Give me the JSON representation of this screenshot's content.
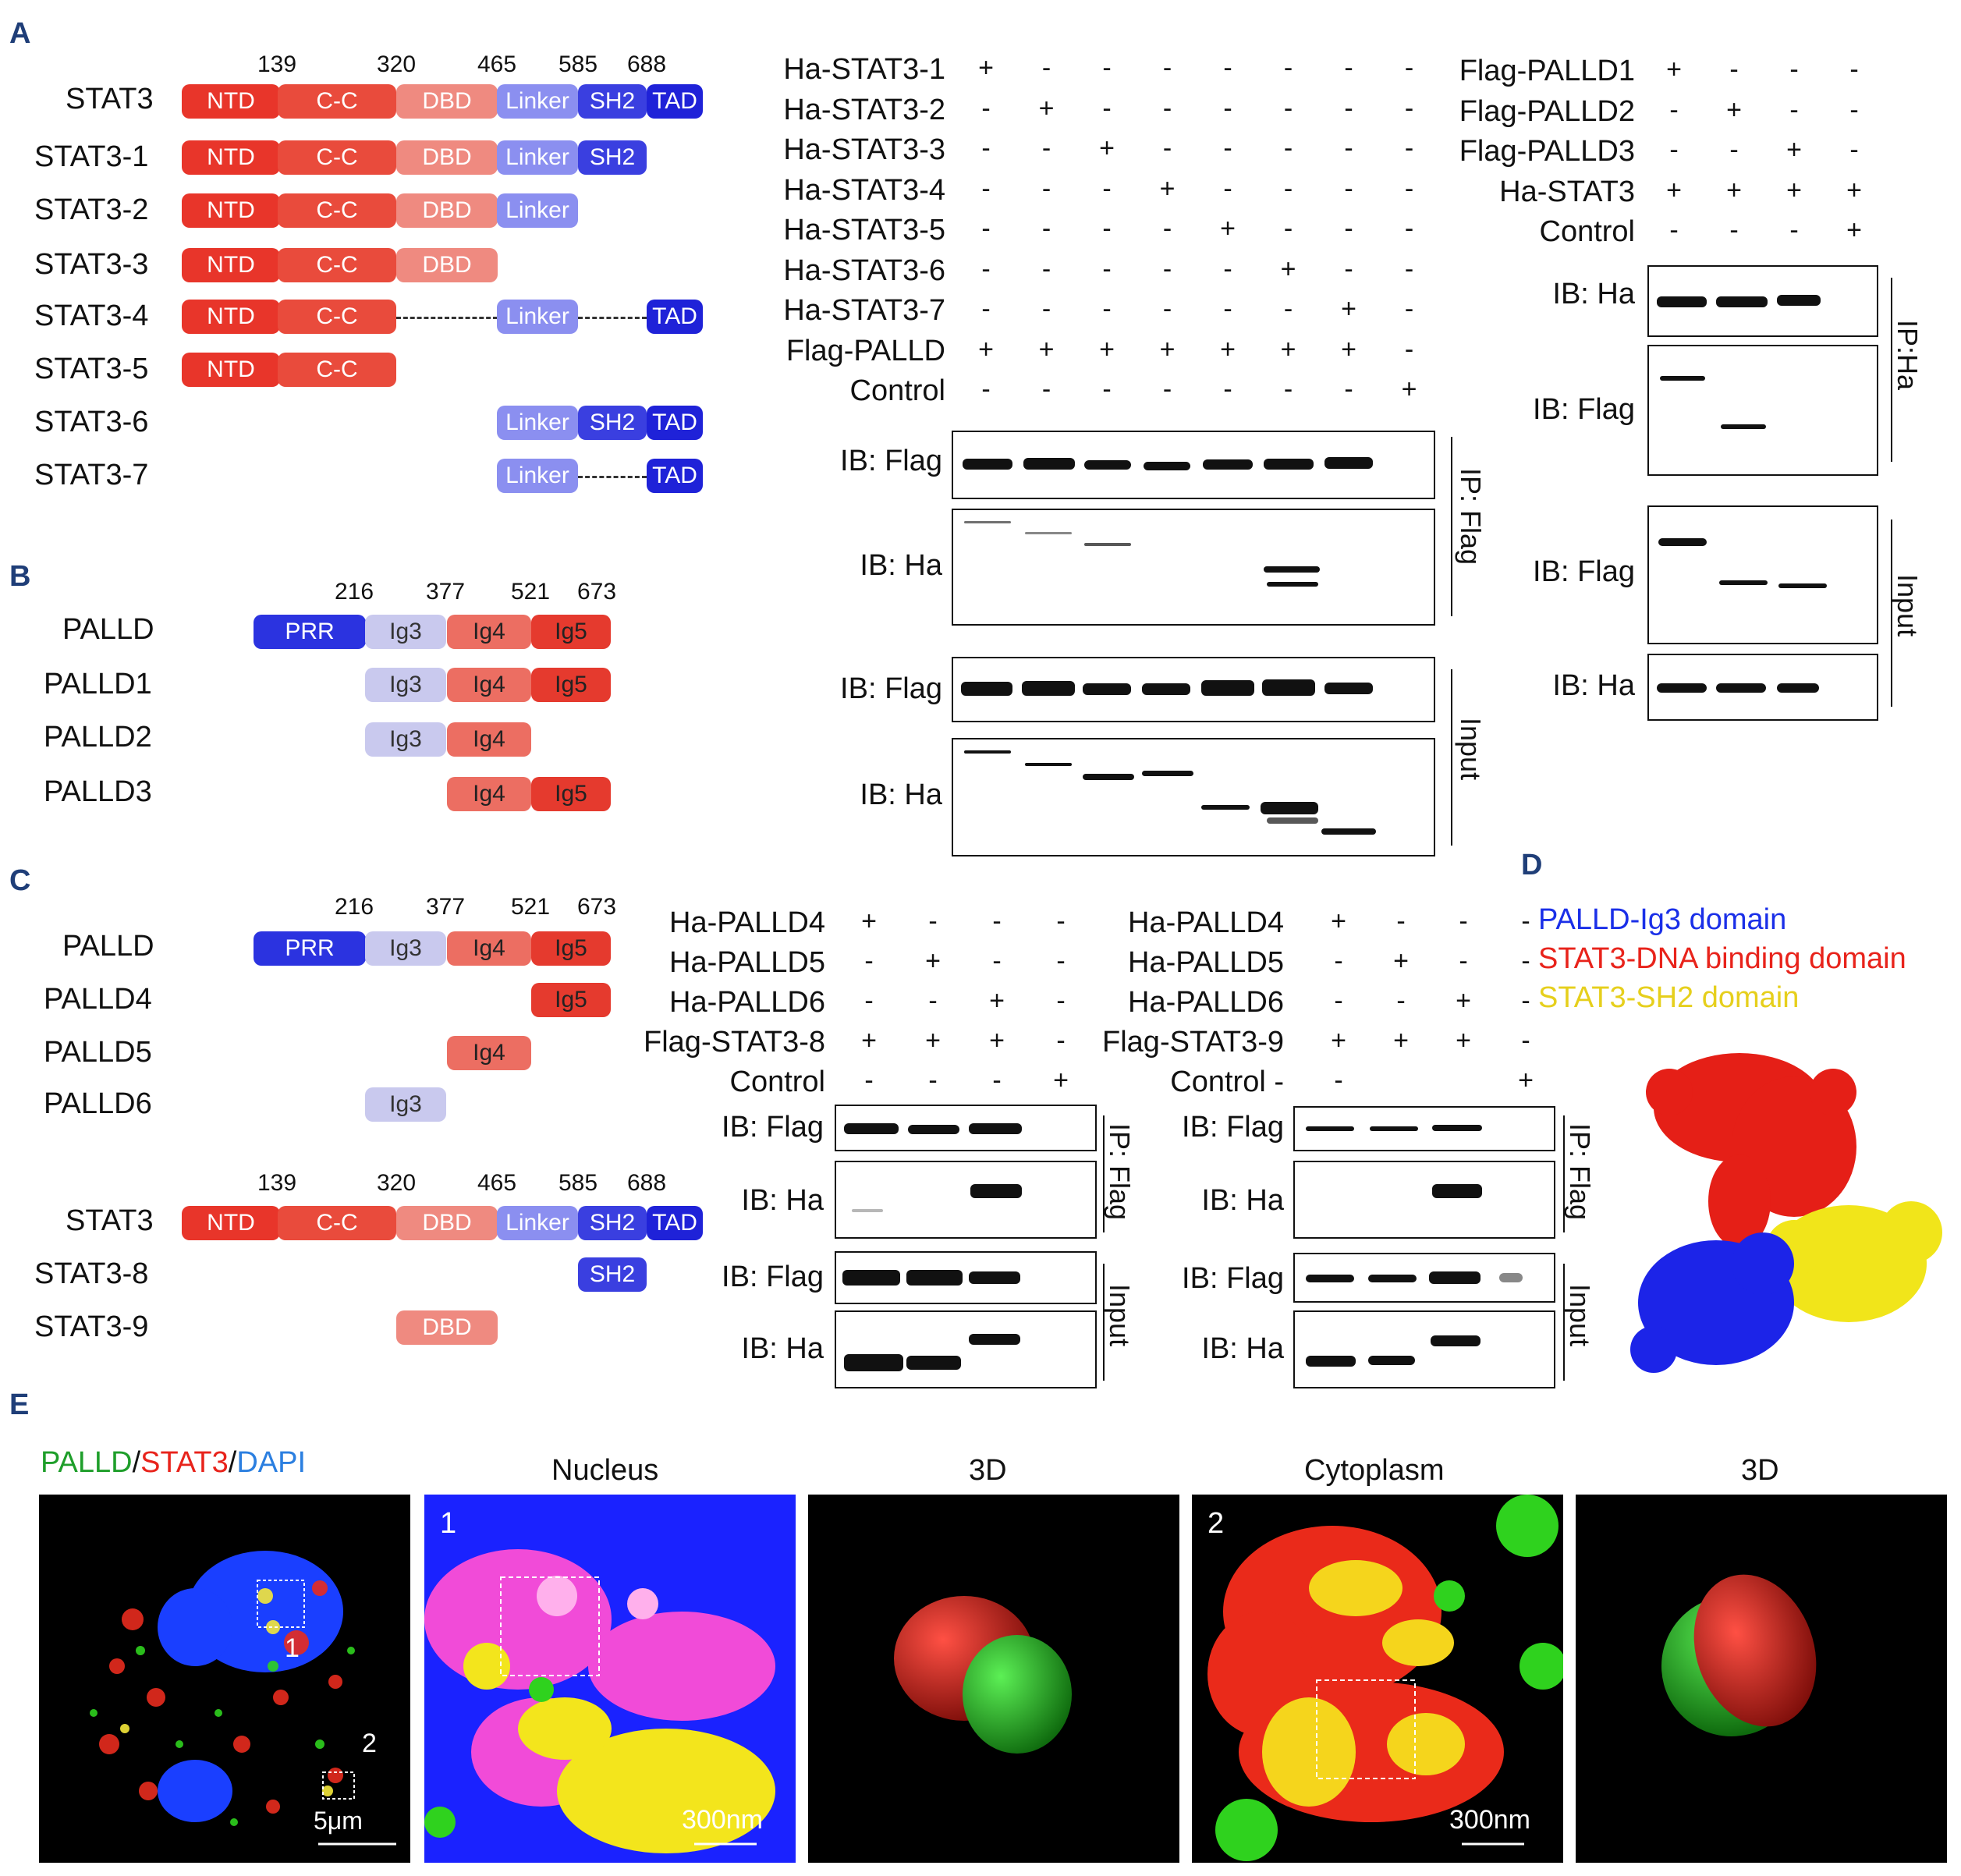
{
  "panels": {
    "A": "A",
    "B": "B",
    "C": "C",
    "D": "D",
    "E": "E"
  },
  "colors": {
    "ntd": "#e8352a",
    "cc": "#e94b3c",
    "dbd": "#ef8a80",
    "linker": "#8b8ff0",
    "sh2": "#3a3fe0",
    "tad": "#1f22d8",
    "prr": "#2b33e0",
    "ig3": "#c9c9ee",
    "ig4": "#ec6e62",
    "ig5": "#e53a2e",
    "label": "#1f3e78"
  },
  "stat3_positions": [
    "139",
    "320",
    "465",
    "585",
    "688"
  ],
  "palld_positions": [
    "216",
    "377",
    "521",
    "673"
  ],
  "stat3_constructs": [
    {
      "name": "STAT3"
    },
    {
      "name": "STAT3-1"
    },
    {
      "name": "STAT3-2"
    },
    {
      "name": "STAT3-3"
    },
    {
      "name": "STAT3-4"
    },
    {
      "name": "STAT3-5"
    },
    {
      "name": "STAT3-6"
    },
    {
      "name": "STAT3-7"
    }
  ],
  "domains": {
    "ntd": "NTD",
    "cc": "C-C",
    "dbd": "DBD",
    "linker": "Linker",
    "sh2": "SH2",
    "tad": "TAD",
    "prr": "PRR",
    "ig3": "Ig3",
    "ig4": "Ig4",
    "ig5": "Ig5"
  },
  "palld_b": [
    "PALLD",
    "PALLD1",
    "PALLD2",
    "PALLD3"
  ],
  "palld_c": [
    "PALLD",
    "PALLD4",
    "PALLD5",
    "PALLD6"
  ],
  "stat3_c": [
    "STAT3",
    "STAT3-8",
    "STAT3-9"
  ],
  "blotA_mid": {
    "rows": [
      {
        "label": "Ha-STAT3-1",
        "marks": [
          "+",
          "-",
          "-",
          "-",
          "-",
          "-",
          "-",
          "-"
        ]
      },
      {
        "label": "Ha-STAT3-2",
        "marks": [
          "-",
          "+",
          "-",
          "-",
          "-",
          "-",
          "-",
          "-"
        ]
      },
      {
        "label": "Ha-STAT3-3",
        "marks": [
          "-",
          "-",
          "+",
          "-",
          "-",
          "-",
          "-",
          "-"
        ]
      },
      {
        "label": "Ha-STAT3-4",
        "marks": [
          "-",
          "-",
          "-",
          "+",
          "-",
          "-",
          "-",
          "-"
        ]
      },
      {
        "label": "Ha-STAT3-5",
        "marks": [
          "-",
          "-",
          "-",
          "-",
          "+",
          "-",
          "-",
          "-"
        ]
      },
      {
        "label": "Ha-STAT3-6",
        "marks": [
          "-",
          "-",
          "-",
          "-",
          "-",
          "+",
          "-",
          "-"
        ]
      },
      {
        "label": "Ha-STAT3-7",
        "marks": [
          "-",
          "-",
          "-",
          "-",
          "-",
          "-",
          "+",
          "-"
        ]
      },
      {
        "label": "Flag-PALLD",
        "marks": [
          "+",
          "+",
          "+",
          "+",
          "+",
          "+",
          "+",
          "-"
        ]
      },
      {
        "label": "Control",
        "marks": [
          "-",
          "-",
          "-",
          "-",
          "-",
          "-",
          "-",
          "+"
        ]
      }
    ],
    "ib": [
      "IB: Flag",
      "IB: Ha",
      "IB: Flag",
      "IB: Ha"
    ],
    "groups": [
      "IP: Flag",
      "Input"
    ]
  },
  "blotA_right": {
    "rows": [
      {
        "label": "Flag-PALLD1",
        "marks": [
          "+",
          "-",
          "-",
          "-"
        ]
      },
      {
        "label": "Flag-PALLD2",
        "marks": [
          "-",
          "+",
          "-",
          "-"
        ]
      },
      {
        "label": "Flag-PALLD3",
        "marks": [
          "-",
          "-",
          "+",
          "-"
        ]
      },
      {
        "label": "Ha-STAT3",
        "marks": [
          "+",
          "+",
          "+",
          "+"
        ]
      },
      {
        "label": "Control",
        "marks": [
          "-",
          "-",
          "-",
          "+"
        ]
      }
    ],
    "ib": [
      "IB: Ha",
      "IB: Flag",
      "IB: Flag",
      "IB: Ha"
    ],
    "groups": [
      "IP:Ha",
      "Input"
    ]
  },
  "blotC1": {
    "rows": [
      {
        "label": "Ha-PALLD4",
        "marks": [
          "+",
          "-",
          "-",
          "-"
        ]
      },
      {
        "label": "Ha-PALLD5",
        "marks": [
          "-",
          "+",
          "-",
          "-"
        ]
      },
      {
        "label": "Ha-PALLD6",
        "marks": [
          "-",
          "-",
          "+",
          "-"
        ]
      },
      {
        "label": "Flag-STAT3-8",
        "marks": [
          "+",
          "+",
          "+",
          "-"
        ]
      },
      {
        "label": "Control",
        "marks": [
          "-",
          "-",
          "-",
          "+"
        ]
      }
    ],
    "ib": [
      "IB: Flag",
      "IB: Ha",
      "IB: Flag",
      "IB: Ha"
    ],
    "groups": [
      "IP: Flag",
      "Input"
    ]
  },
  "blotC2": {
    "rows": [
      {
        "label": "Ha-PALLD4",
        "marks": [
          "+",
          "-",
          "-",
          "-"
        ]
      },
      {
        "label": "Ha-PALLD5",
        "marks": [
          "-",
          "+",
          "-",
          "-"
        ]
      },
      {
        "label": "Ha-PALLD6",
        "marks": [
          "-",
          "-",
          "+",
          "-"
        ]
      },
      {
        "label": "Flag-STAT3-9",
        "marks": [
          "+",
          "+",
          "+",
          "-"
        ]
      },
      {
        "label": "Control -",
        "marks": [
          "-",
          "",
          "",
          "+"
        ]
      }
    ],
    "ib": [
      "IB: Flag",
      "IB: Ha",
      "IB: Flag",
      "IB: Ha"
    ],
    "groups": [
      "IP: Flag",
      "Input"
    ]
  },
  "legendD": [
    {
      "text": "PALLD-Ig3 domain",
      "color": "#1a2fe8"
    },
    {
      "text": "STAT3-DNA binding domain",
      "color": "#e8231b"
    },
    {
      "text": "STAT3-SH2 domain",
      "color": "#e6cf1c"
    }
  ],
  "panelE": {
    "stain": [
      {
        "text": "PALLD",
        "color": "#1e9e2a"
      },
      {
        "text": "/",
        "color": "#111"
      },
      {
        "text": "STAT3",
        "color": "#e8231b"
      },
      {
        "text": "/",
        "color": "#111"
      },
      {
        "text": "DAPI",
        "color": "#2b7fe0"
      }
    ],
    "titles": [
      "Nucleus",
      "3D",
      "Cytoplasm",
      "3D"
    ],
    "scales": [
      "5μm",
      "300nm",
      "300nm"
    ],
    "region_labels": [
      "1",
      "2"
    ]
  }
}
